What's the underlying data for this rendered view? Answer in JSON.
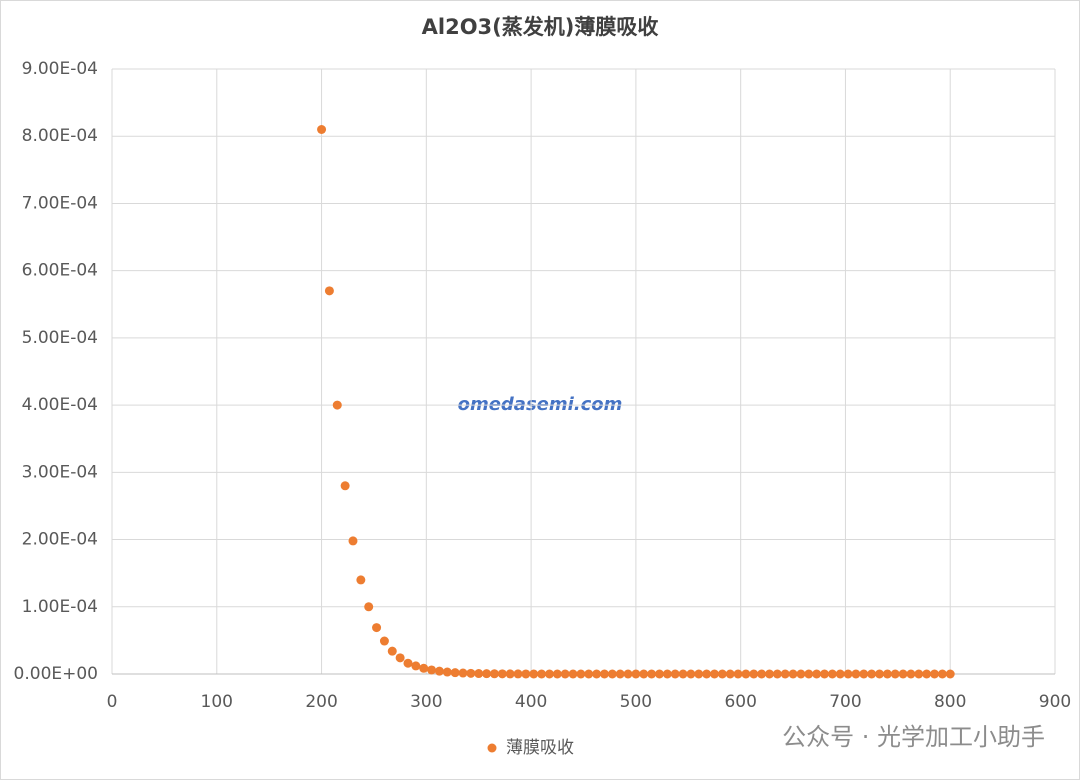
{
  "chart_data": {
    "type": "scatter",
    "title": "Al2O3(蒸发机)薄膜吸收",
    "x": [
      200,
      207.5,
      215,
      222.5,
      230,
      237.5,
      245,
      252.5,
      260,
      267.5,
      275,
      282.5,
      290,
      297.5,
      305,
      312.5,
      320,
      327.5,
      335,
      342.5,
      350,
      357.5,
      365,
      372.5,
      380,
      387.5,
      395,
      402.5,
      410,
      417.5,
      425,
      432.5,
      440,
      447.5,
      455,
      462.5,
      470,
      477.5,
      485,
      492.5,
      500,
      507.5,
      515,
      522.5,
      530,
      537.5,
      545,
      552.5,
      560,
      567.5,
      575,
      582.5,
      590,
      597.5,
      605,
      612.5,
      620,
      627.5,
      635,
      642.5,
      650,
      657.5,
      665,
      672.5,
      680,
      687.5,
      695,
      702.5,
      710,
      717.5,
      725,
      732.5,
      740,
      747.5,
      755,
      762.5,
      770,
      777.5,
      785,
      792.5,
      800
    ],
    "series": [
      {
        "name": "薄膜吸收",
        "color": "#ed7d31",
        "values": [
          0.00081,
          0.00057,
          0.0004,
          0.00028,
          0.000198,
          0.00014,
          0.0001,
          6.9e-05,
          4.9e-05,
          3.4e-05,
          2.4e-05,
          1.6e-05,
          1.2e-05,
          8.5e-06,
          6e-06,
          4.2e-06,
          2.9e-06,
          2e-06,
          1.4e-06,
          1e-06,
          7e-07,
          5e-07,
          3.5e-07,
          2.5e-07,
          1.7e-07,
          1.2e-07,
          8e-08,
          0,
          0,
          0,
          0,
          0,
          0,
          0,
          0,
          0,
          0,
          0,
          0,
          0,
          0,
          0,
          0,
          0,
          0,
          0,
          0,
          0,
          0,
          0,
          0,
          0,
          0,
          0,
          0,
          0,
          0,
          0,
          0,
          0,
          0,
          0,
          0,
          0,
          0,
          0,
          0,
          0,
          0,
          0,
          0,
          0,
          0,
          0,
          0,
          0,
          0,
          0,
          0,
          0,
          0
        ]
      }
    ],
    "xlim": [
      0,
      900
    ],
    "xticks": [
      0,
      100,
      200,
      300,
      400,
      500,
      600,
      700,
      800,
      900
    ],
    "ylim": [
      0,
      0.0009
    ],
    "yticks": [
      {
        "value": 0,
        "label": "0.00E+00"
      },
      {
        "value": 0.0001,
        "label": "1.00E-04"
      },
      {
        "value": 0.0002,
        "label": "2.00E-04"
      },
      {
        "value": 0.0003,
        "label": "3.00E-04"
      },
      {
        "value": 0.0004,
        "label": "4.00E-04"
      },
      {
        "value": 0.0005,
        "label": "5.00E-04"
      },
      {
        "value": 0.0006,
        "label": "6.00E-04"
      },
      {
        "value": 0.0007,
        "label": "7.00E-04"
      },
      {
        "value": 0.0008,
        "label": "8.00E-04"
      },
      {
        "value": 0.0009,
        "label": "9.00E-04"
      }
    ],
    "grid": true,
    "legend": "bottom",
    "annotations": [
      "omedasemi.com",
      "公众号 · 光学加工小助手"
    ]
  }
}
